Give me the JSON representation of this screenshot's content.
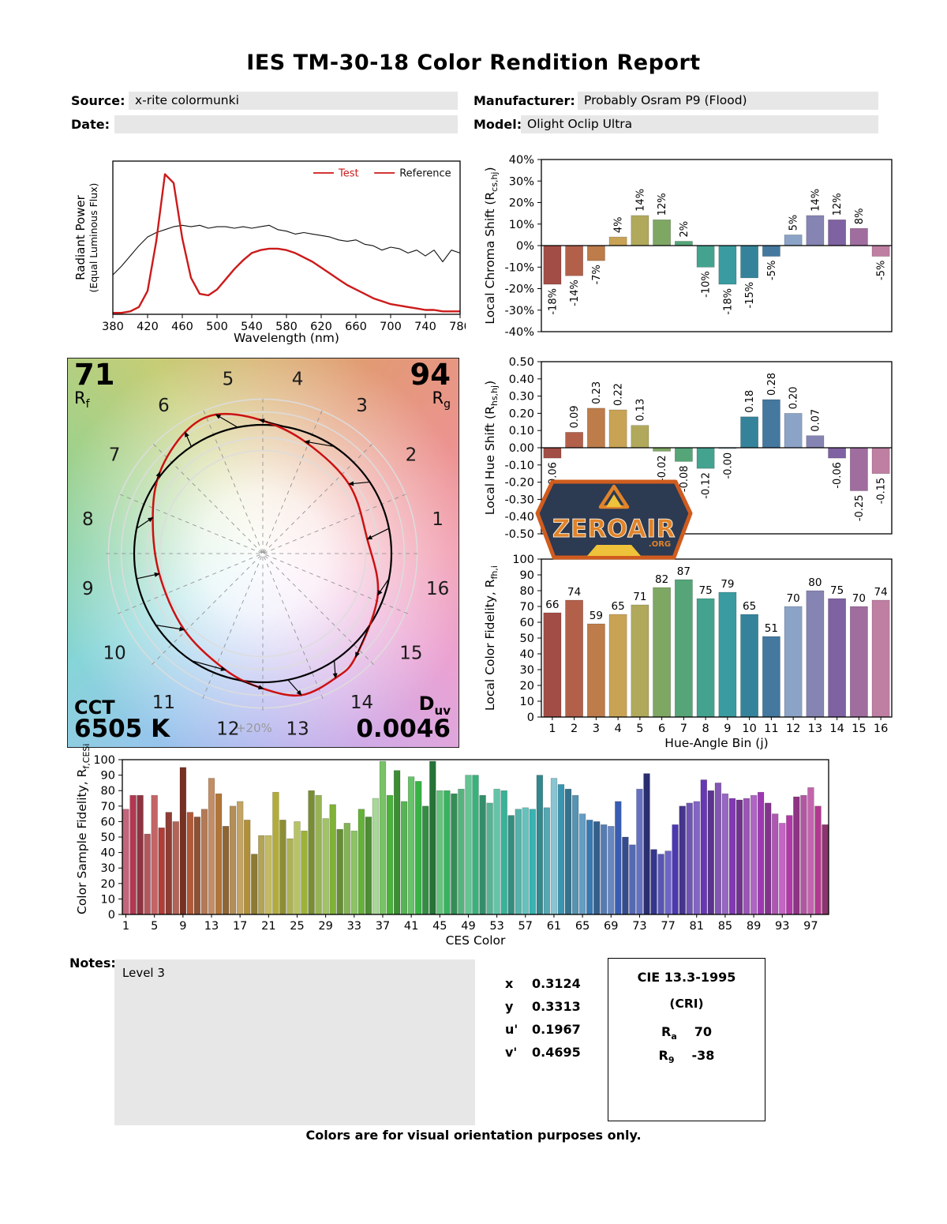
{
  "title": "IES TM-30-18 Color Rendition Report",
  "header": {
    "source_label": "Source:",
    "source_value": "x-rite colormunki",
    "date_label": "Date:",
    "date_value": "",
    "manufacturer_label": "Manufacturer:",
    "manufacturer_value": "Probably Osram P9 (Flood)",
    "model_label": "Model:",
    "model_value": "Olight Oclip Ultra"
  },
  "gamut": {
    "rf_value": "71",
    "rf_base": "R",
    "rf_sub": "f",
    "rg_value": "94",
    "rg_base": "R",
    "rg_sub": "g",
    "cct_label": "CCT",
    "cct_value": "6505 K",
    "duv_base": "D",
    "duv_sub": "uv",
    "duv_value": "0.0046",
    "ring_label": "+20%",
    "bin_numbers": [
      "1",
      "2",
      "3",
      "4",
      "5",
      "6",
      "7",
      "8",
      "9",
      "10",
      "11",
      "12",
      "13",
      "14",
      "15",
      "16"
    ]
  },
  "hue_bin_colors": [
    "#a34d47",
    "#b3604b",
    "#bd7c4a",
    "#c9a355",
    "#b0a95c",
    "#7ea763",
    "#55a578",
    "#43a38f",
    "#3a9ba0",
    "#35839b",
    "#44789f",
    "#8ba3c6",
    "#8584b2",
    "#7f62a2",
    "#a06d9f",
    "#bf7fa2"
  ],
  "logo": {
    "text": "ZEROAIR",
    "org": ".ORG"
  },
  "notes": {
    "label": "Notes:",
    "value": "Level 3"
  },
  "chromaticity": {
    "rows": [
      {
        "label": "x",
        "value": "0.3124"
      },
      {
        "label": "y",
        "value": "0.3313"
      },
      {
        "label": "u'",
        "value": "0.1967"
      },
      {
        "label": "v'",
        "value": "0.4695"
      }
    ]
  },
  "cie": {
    "title": "CIE 13.3-1995",
    "subtitle": "(CRI)",
    "ra_base": "R",
    "ra_sub": "a",
    "ra_value": "70",
    "r9_base": "R",
    "r9_sub": "9",
    "r9_value": "-38"
  },
  "footer": "Colors are for visual orientation purposes only.",
  "chart_data": [
    {
      "id": "spd",
      "type": "line",
      "xlabel": "Wavelength (nm)",
      "ylabel_lines": [
        "Radiant Power",
        "(Equal Luminous Flux)"
      ],
      "x_start": 380,
      "x_end": 780,
      "x_step": 10,
      "xticks": [
        "380",
        "420",
        "460",
        "500",
        "540",
        "580",
        "620",
        "660",
        "700",
        "740",
        "780"
      ],
      "ylim": [
        0,
        1.05
      ],
      "series": [
        {
          "name": "Test",
          "color": "#cc1a1a",
          "width": 2.4,
          "values": [
            0.01,
            0.01,
            0.02,
            0.05,
            0.16,
            0.5,
            0.96,
            0.9,
            0.52,
            0.25,
            0.14,
            0.13,
            0.17,
            0.24,
            0.31,
            0.37,
            0.42,
            0.44,
            0.45,
            0.45,
            0.44,
            0.42,
            0.39,
            0.36,
            0.32,
            0.28,
            0.24,
            0.2,
            0.17,
            0.14,
            0.11,
            0.09,
            0.07,
            0.06,
            0.05,
            0.04,
            0.03,
            0.03,
            0.02,
            0.02,
            0.02
          ]
        },
        {
          "name": "Reference",
          "color": "#111111",
          "width": 1.1,
          "values": [
            0.27,
            0.33,
            0.4,
            0.47,
            0.53,
            0.56,
            0.58,
            0.6,
            0.61,
            0.6,
            0.61,
            0.59,
            0.6,
            0.6,
            0.59,
            0.6,
            0.59,
            0.6,
            0.61,
            0.58,
            0.57,
            0.55,
            0.56,
            0.55,
            0.54,
            0.53,
            0.51,
            0.5,
            0.51,
            0.48,
            0.47,
            0.44,
            0.46,
            0.45,
            0.42,
            0.44,
            0.4,
            0.44,
            0.36,
            0.44,
            0.42
          ]
        }
      ],
      "legend": [
        {
          "label": "Test",
          "line_color": "#cc1a1a",
          "text_color": "#cc1a1a"
        },
        {
          "label": "Reference",
          "line_color": "#cc1a1a",
          "text_color": "#111111"
        }
      ]
    },
    {
      "id": "chroma_shift",
      "type": "bar",
      "ylabel": {
        "pre": "Local Chroma Shift (R",
        "sub": "cs,hj",
        "post": ")"
      },
      "categories": [
        1,
        2,
        3,
        4,
        5,
        6,
        7,
        8,
        9,
        10,
        11,
        12,
        13,
        14,
        15,
        16
      ],
      "values": [
        -18,
        -14,
        -7,
        4,
        14,
        12,
        2,
        -10,
        -18,
        -15,
        -5,
        5,
        14,
        12,
        8,
        -5
      ],
      "labels": [
        "-18%",
        "-14%",
        "-7%",
        "4%",
        "14%",
        "12%",
        "2%",
        "-10%",
        "-18%",
        "-15%",
        "-5%",
        "5%",
        "14%",
        "12%",
        "8%",
        "-5%"
      ],
      "ylim": [
        -40,
        40
      ],
      "yticks": [
        "40%",
        "30%",
        "20%",
        "10%",
        "0%",
        "-10%",
        "-20%",
        "-30%",
        "-40%"
      ]
    },
    {
      "id": "hue_shift",
      "type": "bar",
      "ylabel": {
        "pre": "Local Hue Shift (R",
        "sub": "hs,hj",
        "post": ")"
      },
      "categories": [
        1,
        2,
        3,
        4,
        5,
        6,
        7,
        8,
        9,
        10,
        11,
        12,
        13,
        14,
        15,
        16
      ],
      "values": [
        -0.06,
        0.09,
        0.23,
        0.22,
        0.13,
        -0.02,
        -0.08,
        -0.12,
        -0.004,
        0.18,
        0.28,
        0.2,
        0.07,
        -0.06,
        -0.25,
        -0.15
      ],
      "labels": [
        "-0.06",
        "0.09",
        "0.23",
        "0.22",
        "0.13",
        "-0.02",
        "-0.08",
        "-0.12",
        "-0.00",
        "0.18",
        "0.28",
        "0.20",
        "0.07",
        "-0.06",
        "-0.25",
        "-0.15"
      ],
      "ylim": [
        -0.5,
        0.5
      ],
      "yticks": [
        "0.50",
        "0.40",
        "0.30",
        "0.20",
        "0.10",
        "0.00",
        "-0.10",
        "-0.20",
        "-0.30",
        "-0.40",
        "-0.50"
      ]
    },
    {
      "id": "local_fidelity",
      "type": "bar",
      "ylabel": {
        "pre": "Local Color Fidelity, R",
        "sub": "fh,i",
        "post": ""
      },
      "xlabel": "Hue-Angle Bin (j)",
      "values": [
        66,
        74,
        59,
        65,
        71,
        82,
        87,
        75,
        79,
        65,
        51,
        70,
        80,
        75,
        70,
        74
      ],
      "labels": [
        "66",
        "74",
        "59",
        "65",
        "71",
        "82",
        "87",
        "75",
        "79",
        "65",
        "51",
        "70",
        "80",
        "75",
        "70",
        "74"
      ],
      "ylim": [
        0,
        100
      ],
      "yticks": [
        "100",
        "90",
        "80",
        "70",
        "60",
        "50",
        "40",
        "30",
        "20",
        "10",
        "0"
      ],
      "xticks": [
        "1",
        "2",
        "3",
        "4",
        "5",
        "6",
        "7",
        "8",
        "9",
        "10",
        "11",
        "12",
        "13",
        "14",
        "15",
        "16"
      ]
    },
    {
      "id": "ces",
      "type": "bar",
      "ylabel": {
        "pre": "Color Sample Fidelity, R",
        "sub": "f,CESi",
        "post": ""
      },
      "xlabel": "CES Color",
      "values": [
        68,
        77,
        77,
        52,
        77,
        56,
        66,
        60,
        95,
        66,
        63,
        68,
        88,
        78,
        57,
        70,
        73,
        61,
        39,
        51,
        51,
        79,
        61,
        49,
        60,
        54,
        80,
        77,
        62,
        71,
        55,
        59,
        54,
        68,
        63,
        75,
        99,
        77,
        93,
        73,
        89,
        86,
        70,
        99,
        80,
        80,
        78,
        81,
        90,
        90,
        77,
        72,
        81,
        80,
        64,
        68,
        69,
        68,
        90,
        69,
        88,
        84,
        81,
        77,
        65,
        61,
        60,
        58,
        57,
        73,
        50,
        45,
        81,
        91,
        42,
        39,
        41,
        58,
        70,
        72,
        73,
        87,
        80,
        85,
        78,
        75,
        74,
        75,
        77,
        79,
        72,
        65,
        59,
        64,
        76,
        77,
        82,
        70,
        58
      ],
      "colors": [
        "hsl(345,44%,58%)",
        "hsl(348,52%,46%)",
        "hsl(352,46%,38%)",
        "hsl(355,38%,52%)",
        "hsl(359,44%,58%)",
        "hsl(2,52%,46%)",
        "hsl(6,46%,38%)",
        "hsl(9,38%,52%)",
        "hsl(10,55%,30%)",
        "hsl(16,52%,46%)",
        "hsl(19,46%,38%)",
        "hsl(23,38%,52%)",
        "hsl(26,44%,58%)",
        "hsl(30,52%,46%)",
        "hsl(33,46%,38%)",
        "hsl(36,38%,52%)",
        "hsl(40,44%,58%)",
        "hsl(43,52%,46%)",
        "hsl(47,46%,38%)",
        "hsl(50,38%,52%)",
        "hsl(54,44%,58%)",
        "hsl(57,52%,46%)",
        "hsl(60,46%,38%)",
        "hsl(64,38%,52%)",
        "hsl(67,44%,58%)",
        "hsl(71,52%,46%)",
        "hsl(74,46%,38%)",
        "hsl(78,38%,52%)",
        "hsl(81,44%,58%)",
        "hsl(84,52%,46%)",
        "hsl(88,46%,38%)",
        "hsl(91,38%,52%)",
        "hsl(95,44%,58%)",
        "hsl(98,52%,46%)",
        "hsl(102,46%,38%)",
        "hsl(105,45%,72%)",
        "hsl(108,44%,58%)",
        "hsl(112,52%,46%)",
        "hsl(115,46%,38%)",
        "hsl(119,38%,52%)",
        "hsl(122,44%,58%)",
        "hsl(126,52%,46%)",
        "hsl(129,46%,38%)",
        "hsl(134,50%,30%)",
        "hsl(136,44%,58%)",
        "hsl(139,52%,46%)",
        "hsl(143,46%,38%)",
        "hsl(146,38%,52%)",
        "hsl(150,44%,58%)",
        "hsl(153,52%,46%)",
        "hsl(157,46%,38%)",
        "hsl(160,38%,52%)",
        "hsl(163,44%,58%)",
        "hsl(167,52%,46%)",
        "hsl(170,46%,38%)",
        "hsl(174,38%,52%)",
        "hsl(177,44%,58%)",
        "hsl(180,52%,46%)",
        "hsl(184,46%,38%)",
        "hsl(187,38%,52%)",
        "hsl(191,44%,68%)",
        "hsl(194,52%,46%)",
        "hsl(198,46%,38%)",
        "hsl(201,38%,52%)",
        "hsl(204,44%,58%)",
        "hsl(208,52%,46%)",
        "hsl(211,46%,38%)",
        "hsl(215,38%,52%)",
        "hsl(218,44%,58%)",
        "hsl(222,52%,46%)",
        "hsl(225,46%,38%)",
        "hsl(228,38%,52%)",
        "hsl(232,44%,58%)",
        "hsl(237,45%,30%)",
        "hsl(239,46%,38%)",
        "hsl(242,38%,52%)",
        "hsl(245,44%,58%)",
        "hsl(249,52%,46%)",
        "hsl(252,46%,38%)",
        "hsl(256,38%,52%)",
        "hsl(259,44%,58%)",
        "hsl(263,52%,46%)",
        "hsl(266,46%,38%)",
        "hsl(269,38%,52%)",
        "hsl(273,44%,58%)",
        "hsl(276,52%,46%)",
        "hsl(280,46%,38%)",
        "hsl(283,38%,52%)",
        "hsl(287,44%,58%)",
        "hsl(290,52%,46%)",
        "hsl(293,46%,38%)",
        "hsl(297,38%,52%)",
        "hsl(300,44%,58%)",
        "hsl(304,52%,46%)",
        "hsl(307,46%,38%)",
        "hsl(311,38%,52%)",
        "hsl(314,44%,58%)",
        "hsl(317,52%,46%)",
        "hsl(321,46%,38%)"
      ],
      "ylim": [
        0,
        100
      ],
      "yticks": [
        "100",
        "90",
        "80",
        "70",
        "60",
        "50",
        "40",
        "30",
        "20",
        "10",
        "0"
      ],
      "xtick_labels": [
        "1",
        "5",
        "9",
        "13",
        "17",
        "21",
        "25",
        "29",
        "33",
        "37",
        "41",
        "45",
        "49",
        "53",
        "57",
        "61",
        "65",
        "69",
        "73",
        "77",
        "81",
        "85",
        "89",
        "93",
        "97"
      ],
      "xtick_positions": [
        0,
        4,
        8,
        12,
        16,
        20,
        24,
        28,
        32,
        36,
        40,
        44,
        48,
        52,
        56,
        60,
        64,
        68,
        72,
        76,
        80,
        84,
        88,
        92,
        96
      ]
    }
  ]
}
